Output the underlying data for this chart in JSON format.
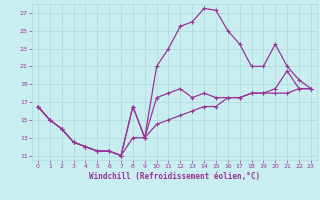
{
  "bg_color": "#c8eef0",
  "line_color": "#993399",
  "grid_color": "#b0d8dc",
  "xlim": [
    -0.5,
    23.5
  ],
  "ylim": [
    10.5,
    28
  ],
  "xticks": [
    0,
    1,
    2,
    3,
    4,
    5,
    6,
    7,
    8,
    9,
    10,
    11,
    12,
    13,
    14,
    15,
    16,
    17,
    18,
    19,
    20,
    21,
    22,
    23
  ],
  "yticks": [
    11,
    13,
    15,
    17,
    19,
    21,
    23,
    25,
    27
  ],
  "xlabel": "Windchill (Refroidissement éolien,°C)",
  "line1_x": [
    0,
    1,
    2,
    3,
    4,
    5,
    6,
    7,
    8,
    9,
    10,
    11,
    12,
    13,
    14,
    15,
    16,
    17,
    18,
    19,
    20,
    21,
    22,
    23
  ],
  "line1_y": [
    16.5,
    15.0,
    14.0,
    12.5,
    12.0,
    11.5,
    11.5,
    11.0,
    16.5,
    13.0,
    17.5,
    18.0,
    18.5,
    17.5,
    18.0,
    17.5,
    17.5,
    17.5,
    18.0,
    18.0,
    18.5,
    20.5,
    18.5,
    18.5
  ],
  "line2_x": [
    0,
    1,
    2,
    3,
    4,
    5,
    6,
    7,
    8,
    9,
    10,
    11,
    12,
    13,
    14,
    15,
    16,
    17,
    18,
    19,
    20,
    21,
    22,
    23
  ],
  "line2_y": [
    16.5,
    15.0,
    14.0,
    12.5,
    12.0,
    11.5,
    11.5,
    11.0,
    16.5,
    13.0,
    21.0,
    23.0,
    25.5,
    26.0,
    27.5,
    27.3,
    25.0,
    23.5,
    21.0,
    21.0,
    23.5,
    21.0,
    19.5,
    18.5
  ],
  "line3_x": [
    0,
    1,
    2,
    3,
    4,
    5,
    6,
    7,
    8,
    9,
    10,
    11,
    12,
    13,
    14,
    15,
    16,
    17,
    18,
    19,
    20,
    21,
    22,
    23
  ],
  "line3_y": [
    16.5,
    15.0,
    14.0,
    12.5,
    12.0,
    11.5,
    11.5,
    11.0,
    13.0,
    13.0,
    14.5,
    15.0,
    15.5,
    16.0,
    16.5,
    16.5,
    17.5,
    17.5,
    18.0,
    18.0,
    18.0,
    18.0,
    18.5,
    18.5
  ]
}
